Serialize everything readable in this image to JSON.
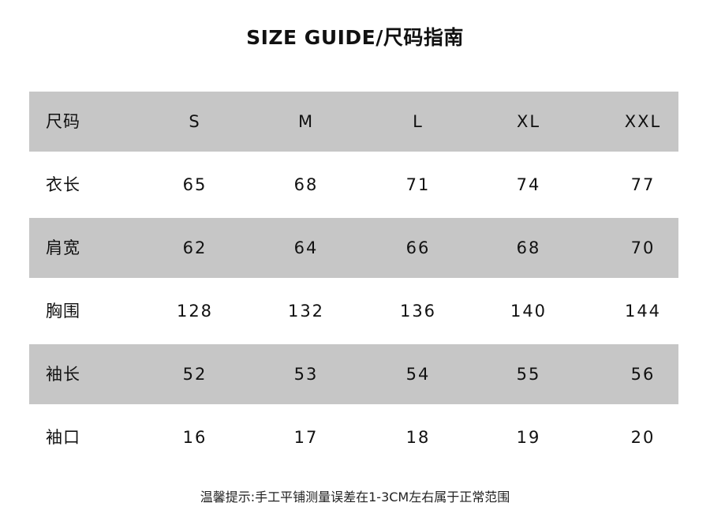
{
  "title": "SIZE GUIDE/尺码指南",
  "table": {
    "header": {
      "label": "尺码",
      "values": [
        "S",
        "M",
        "L",
        "XL",
        "XXL"
      ]
    },
    "rows": [
      {
        "label": "衣长",
        "values": [
          "65",
          "68",
          "71",
          "74",
          "77"
        ]
      },
      {
        "label": "肩宽",
        "values": [
          "62",
          "64",
          "66",
          "68",
          "70"
        ]
      },
      {
        "label": "胸围",
        "values": [
          "128",
          "132",
          "136",
          "140",
          "144"
        ]
      },
      {
        "label": "袖长",
        "values": [
          "52",
          "53",
          "54",
          "55",
          "56"
        ]
      },
      {
        "label": "袖口",
        "values": [
          "16",
          "17",
          "18",
          "19",
          "20"
        ]
      }
    ],
    "stripe_color": "#c6c6c6"
  },
  "note": "温馨提示:手工平铺测量误差在1-3CM左右属于正常范围"
}
